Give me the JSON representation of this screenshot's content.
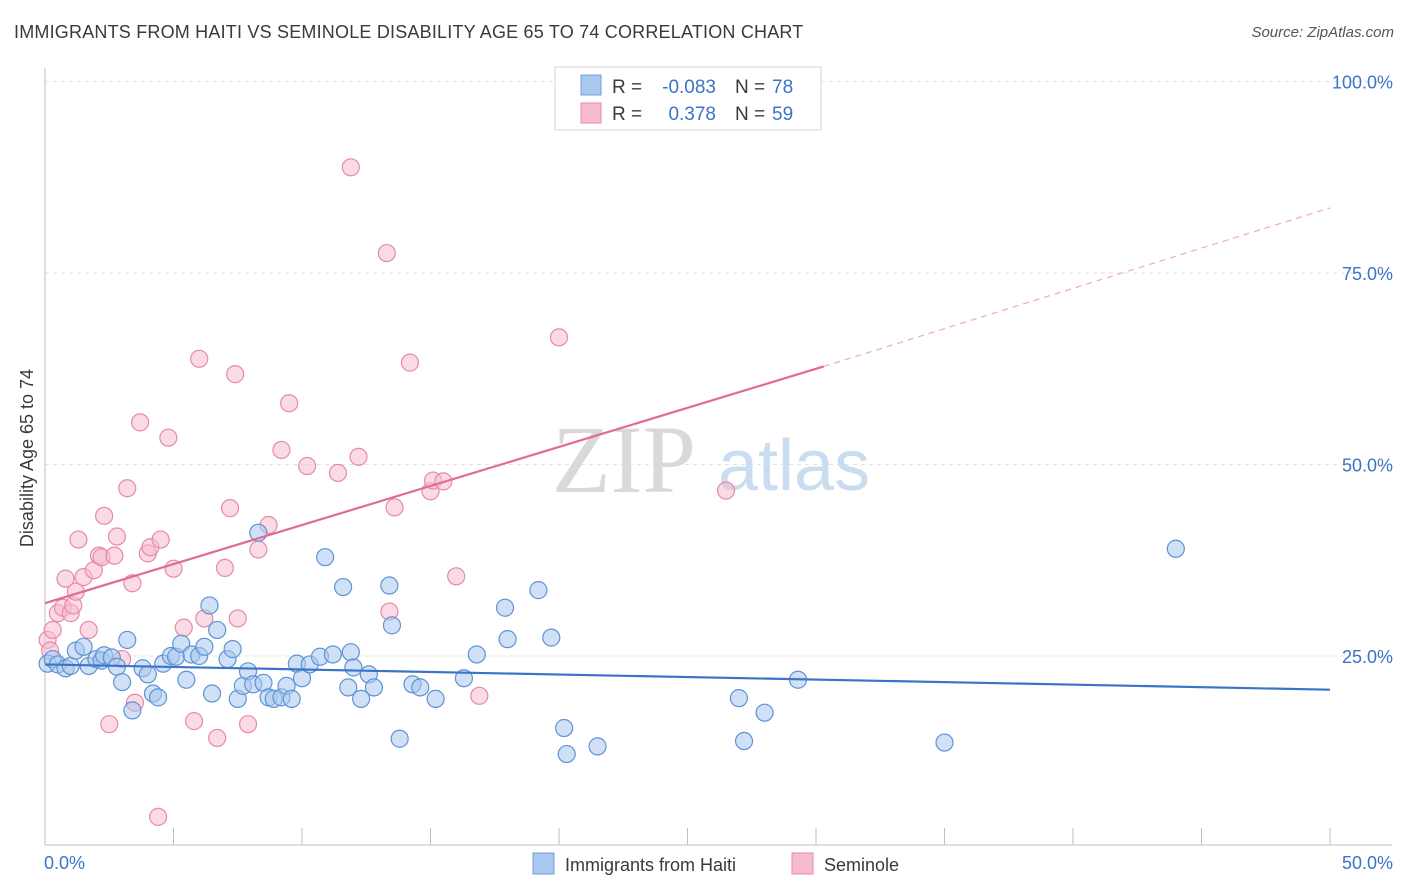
{
  "title": "IMMIGRANTS FROM HAITI VS SEMINOLE DISABILITY AGE 65 TO 74 CORRELATION CHART",
  "source": "Source: ZipAtlas.com",
  "watermark": {
    "zip": "ZIP",
    "atlas": "atlas"
  },
  "legend_top": [
    {
      "r_label": "R =",
      "r_value": "-0.083",
      "n_label": "N =",
      "n_value": "78",
      "color": "#a9c8f0",
      "stroke": "#6e9fd8"
    },
    {
      "r_label": "R =",
      "r_value": "0.378",
      "n_label": "N =",
      "n_value": "59",
      "color": "#f6bccd",
      "stroke": "#e88aa6"
    }
  ],
  "legend_bottom": [
    {
      "label": "Immigrants from Haiti",
      "color": "#a9c8f0",
      "stroke": "#6e9fd8"
    },
    {
      "label": "Seminole",
      "color": "#f6bccd",
      "stroke": "#e88aa6"
    }
  ],
  "chart_data": {
    "type": "scatter",
    "title": "IMMIGRANTS FROM HAITI VS SEMINOLE DISABILITY AGE 65 TO 74 CORRELATION CHART",
    "xlabel": "",
    "ylabel": "Disability Age 65 to 74",
    "xlim": [
      0,
      50
    ],
    "ylim": [
      0,
      100
    ],
    "x_tick_labels": [
      "0.0%",
      "50.0%"
    ],
    "y_tick_labels": [
      "25.0%",
      "50.0%",
      "75.0%",
      "100.0%"
    ],
    "y_ticks": [
      25,
      50,
      75,
      100
    ],
    "grid": true,
    "legend_placement": "top-center",
    "colors": {
      "haiti": "#3b74c7",
      "seminole": "#e06b93"
    },
    "series": [
      {
        "name": "Immigrants from Haiti",
        "trend": {
          "x": [
            0,
            50
          ],
          "y": [
            23.9,
            20.6
          ]
        },
        "points": [
          [
            0.1,
            24.0
          ],
          [
            0.3,
            24.6
          ],
          [
            0.5,
            23.9
          ],
          [
            0.8,
            23.4
          ],
          [
            1.0,
            23.7
          ],
          [
            1.2,
            25.7
          ],
          [
            1.5,
            26.2
          ],
          [
            1.7,
            23.7
          ],
          [
            2.0,
            24.6
          ],
          [
            2.2,
            24.4
          ],
          [
            2.3,
            25.1
          ],
          [
            2.6,
            24.8
          ],
          [
            2.8,
            23.6
          ],
          [
            3.0,
            21.6
          ],
          [
            3.2,
            27.1
          ],
          [
            3.4,
            17.9
          ],
          [
            3.8,
            23.4
          ],
          [
            4.0,
            22.6
          ],
          [
            4.2,
            20.1
          ],
          [
            4.4,
            19.6
          ],
          [
            4.6,
            24.0
          ],
          [
            4.9,
            25.0
          ],
          [
            5.1,
            24.9
          ],
          [
            5.3,
            26.6
          ],
          [
            5.5,
            21.9
          ],
          [
            5.7,
            25.2
          ],
          [
            6.0,
            25.0
          ],
          [
            6.2,
            26.2
          ],
          [
            6.4,
            31.6
          ],
          [
            6.5,
            20.1
          ],
          [
            6.7,
            28.4
          ],
          [
            7.1,
            24.6
          ],
          [
            7.3,
            25.9
          ],
          [
            7.5,
            19.4
          ],
          [
            7.7,
            21.1
          ],
          [
            7.9,
            23.0
          ],
          [
            8.1,
            21.3
          ],
          [
            8.3,
            41.1
          ],
          [
            8.5,
            21.5
          ],
          [
            8.7,
            19.6
          ],
          [
            8.9,
            19.4
          ],
          [
            9.2,
            19.6
          ],
          [
            9.4,
            21.1
          ],
          [
            9.6,
            19.4
          ],
          [
            9.8,
            24.0
          ],
          [
            10.0,
            22.1
          ],
          [
            10.3,
            23.9
          ],
          [
            10.7,
            24.9
          ],
          [
            10.9,
            37.9
          ],
          [
            11.2,
            25.2
          ],
          [
            11.6,
            34.0
          ],
          [
            11.8,
            20.9
          ],
          [
            11.9,
            25.5
          ],
          [
            12.0,
            23.5
          ],
          [
            12.3,
            19.4
          ],
          [
            12.6,
            22.6
          ],
          [
            12.8,
            20.9
          ],
          [
            13.4,
            34.2
          ],
          [
            13.5,
            29.0
          ],
          [
            13.8,
            14.2
          ],
          [
            14.3,
            21.3
          ],
          [
            14.6,
            20.9
          ],
          [
            15.2,
            19.4
          ],
          [
            16.3,
            22.1
          ],
          [
            16.8,
            25.2
          ],
          [
            17.9,
            31.3
          ],
          [
            18.0,
            27.2
          ],
          [
            19.2,
            33.6
          ],
          [
            19.7,
            27.4
          ],
          [
            20.2,
            15.6
          ],
          [
            20.3,
            12.2
          ],
          [
            21.5,
            13.2
          ],
          [
            27.0,
            19.5
          ],
          [
            27.2,
            13.9
          ],
          [
            28.0,
            17.6
          ],
          [
            29.3,
            21.9
          ],
          [
            35.0,
            13.7
          ],
          [
            44.0,
            39.0
          ]
        ]
      },
      {
        "name": "Seminole",
        "trend": {
          "x": [
            0,
            30.3
          ],
          "y": [
            31.9,
            62.8
          ]
        },
        "trend_dashed": {
          "x": [
            30.3,
            50
          ],
          "y": [
            62.8,
            83.5
          ]
        },
        "points": [
          [
            0.1,
            27.1
          ],
          [
            0.2,
            25.7
          ],
          [
            0.3,
            28.4
          ],
          [
            0.5,
            30.6
          ],
          [
            0.7,
            31.3
          ],
          [
            0.8,
            35.1
          ],
          [
            1.0,
            30.6
          ],
          [
            1.1,
            31.6
          ],
          [
            1.2,
            33.4
          ],
          [
            1.3,
            40.2
          ],
          [
            1.5,
            35.3
          ],
          [
            1.7,
            28.4
          ],
          [
            1.9,
            36.2
          ],
          [
            2.1,
            38.1
          ],
          [
            2.2,
            37.9
          ],
          [
            2.3,
            43.3
          ],
          [
            2.5,
            16.1
          ],
          [
            2.7,
            38.1
          ],
          [
            2.8,
            40.6
          ],
          [
            3.0,
            24.6
          ],
          [
            3.2,
            46.9
          ],
          [
            3.4,
            34.5
          ],
          [
            3.5,
            18.9
          ],
          [
            3.7,
            55.5
          ],
          [
            4.0,
            38.4
          ],
          [
            4.1,
            39.2
          ],
          [
            4.4,
            4.0
          ],
          [
            4.5,
            40.2
          ],
          [
            4.8,
            53.5
          ],
          [
            5.0,
            36.4
          ],
          [
            5.4,
            28.7
          ],
          [
            5.8,
            16.5
          ],
          [
            6.0,
            63.8
          ],
          [
            6.2,
            29.9
          ],
          [
            6.7,
            14.3
          ],
          [
            7.0,
            36.5
          ],
          [
            7.2,
            44.3
          ],
          [
            7.4,
            61.8
          ],
          [
            7.5,
            29.9
          ],
          [
            7.9,
            16.1
          ],
          [
            8.3,
            38.9
          ],
          [
            8.7,
            42.1
          ],
          [
            9.2,
            51.9
          ],
          [
            9.5,
            58.0
          ],
          [
            10.2,
            49.8
          ],
          [
            11.4,
            48.9
          ],
          [
            11.9,
            88.8
          ],
          [
            12.2,
            51.0
          ],
          [
            13.3,
            77.6
          ],
          [
            13.4,
            30.8
          ],
          [
            13.6,
            44.4
          ],
          [
            14.2,
            63.3
          ],
          [
            15.0,
            46.5
          ],
          [
            15.1,
            47.9
          ],
          [
            15.5,
            47.8
          ],
          [
            16.0,
            35.4
          ],
          [
            16.9,
            19.8
          ],
          [
            20.0,
            66.6
          ],
          [
            26.5,
            46.6
          ]
        ]
      }
    ]
  }
}
